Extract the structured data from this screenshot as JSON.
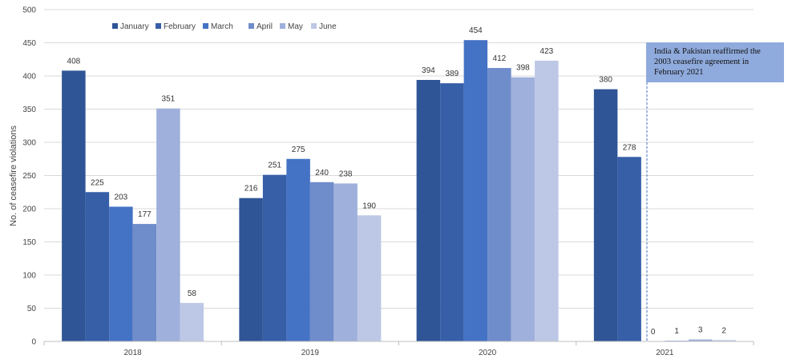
{
  "chart_data": {
    "type": "bar",
    "categories": [
      "2018",
      "2019",
      "2020",
      "2021"
    ],
    "series": [
      {
        "name": "January",
        "values": [
          408,
          216,
          394,
          380
        ],
        "color": "#2f5597"
      },
      {
        "name": "February",
        "values": [
          225,
          251,
          389,
          278
        ],
        "color": "#365fa8"
      },
      {
        "name": "March",
        "values": [
          203,
          275,
          454,
          0
        ],
        "color": "#4472c4"
      },
      {
        "name": "April",
        "values": [
          177,
          240,
          412,
          1
        ],
        "color": "#6f8ccb"
      },
      {
        "name": "May",
        "values": [
          351,
          238,
          398,
          3
        ],
        "color": "#9eb0db"
      },
      {
        "name": "June",
        "values": [
          58,
          190,
          423,
          2
        ],
        "color": "#bdc8e6"
      }
    ],
    "data_labels": [
      [
        "408",
        "225",
        "203",
        "177",
        "351",
        "58"
      ],
      [
        "216",
        "251",
        "275",
        "240",
        "238",
        "190"
      ],
      [
        "394",
        "389",
        "454",
        "412",
        "398",
        "423"
      ],
      [
        "380",
        "278",
        "0",
        "1",
        "3",
        "2"
      ]
    ],
    "title": "",
    "xlabel": "",
    "ylabel": "No. of ceasefire violations",
    "ylim": [
      0,
      500
    ],
    "yticks": [
      0,
      50,
      100,
      150,
      200,
      250,
      300,
      350,
      400,
      450,
      500
    ],
    "grid": true,
    "legend_position": "top-left",
    "annotation": {
      "lines": [
        "India & Pakistan reaffirmed the",
        "2003 ceasefire agreement in",
        "February 2021"
      ],
      "box_color": "#8faadc",
      "marker": "dashed vertical line after February 2021"
    }
  }
}
